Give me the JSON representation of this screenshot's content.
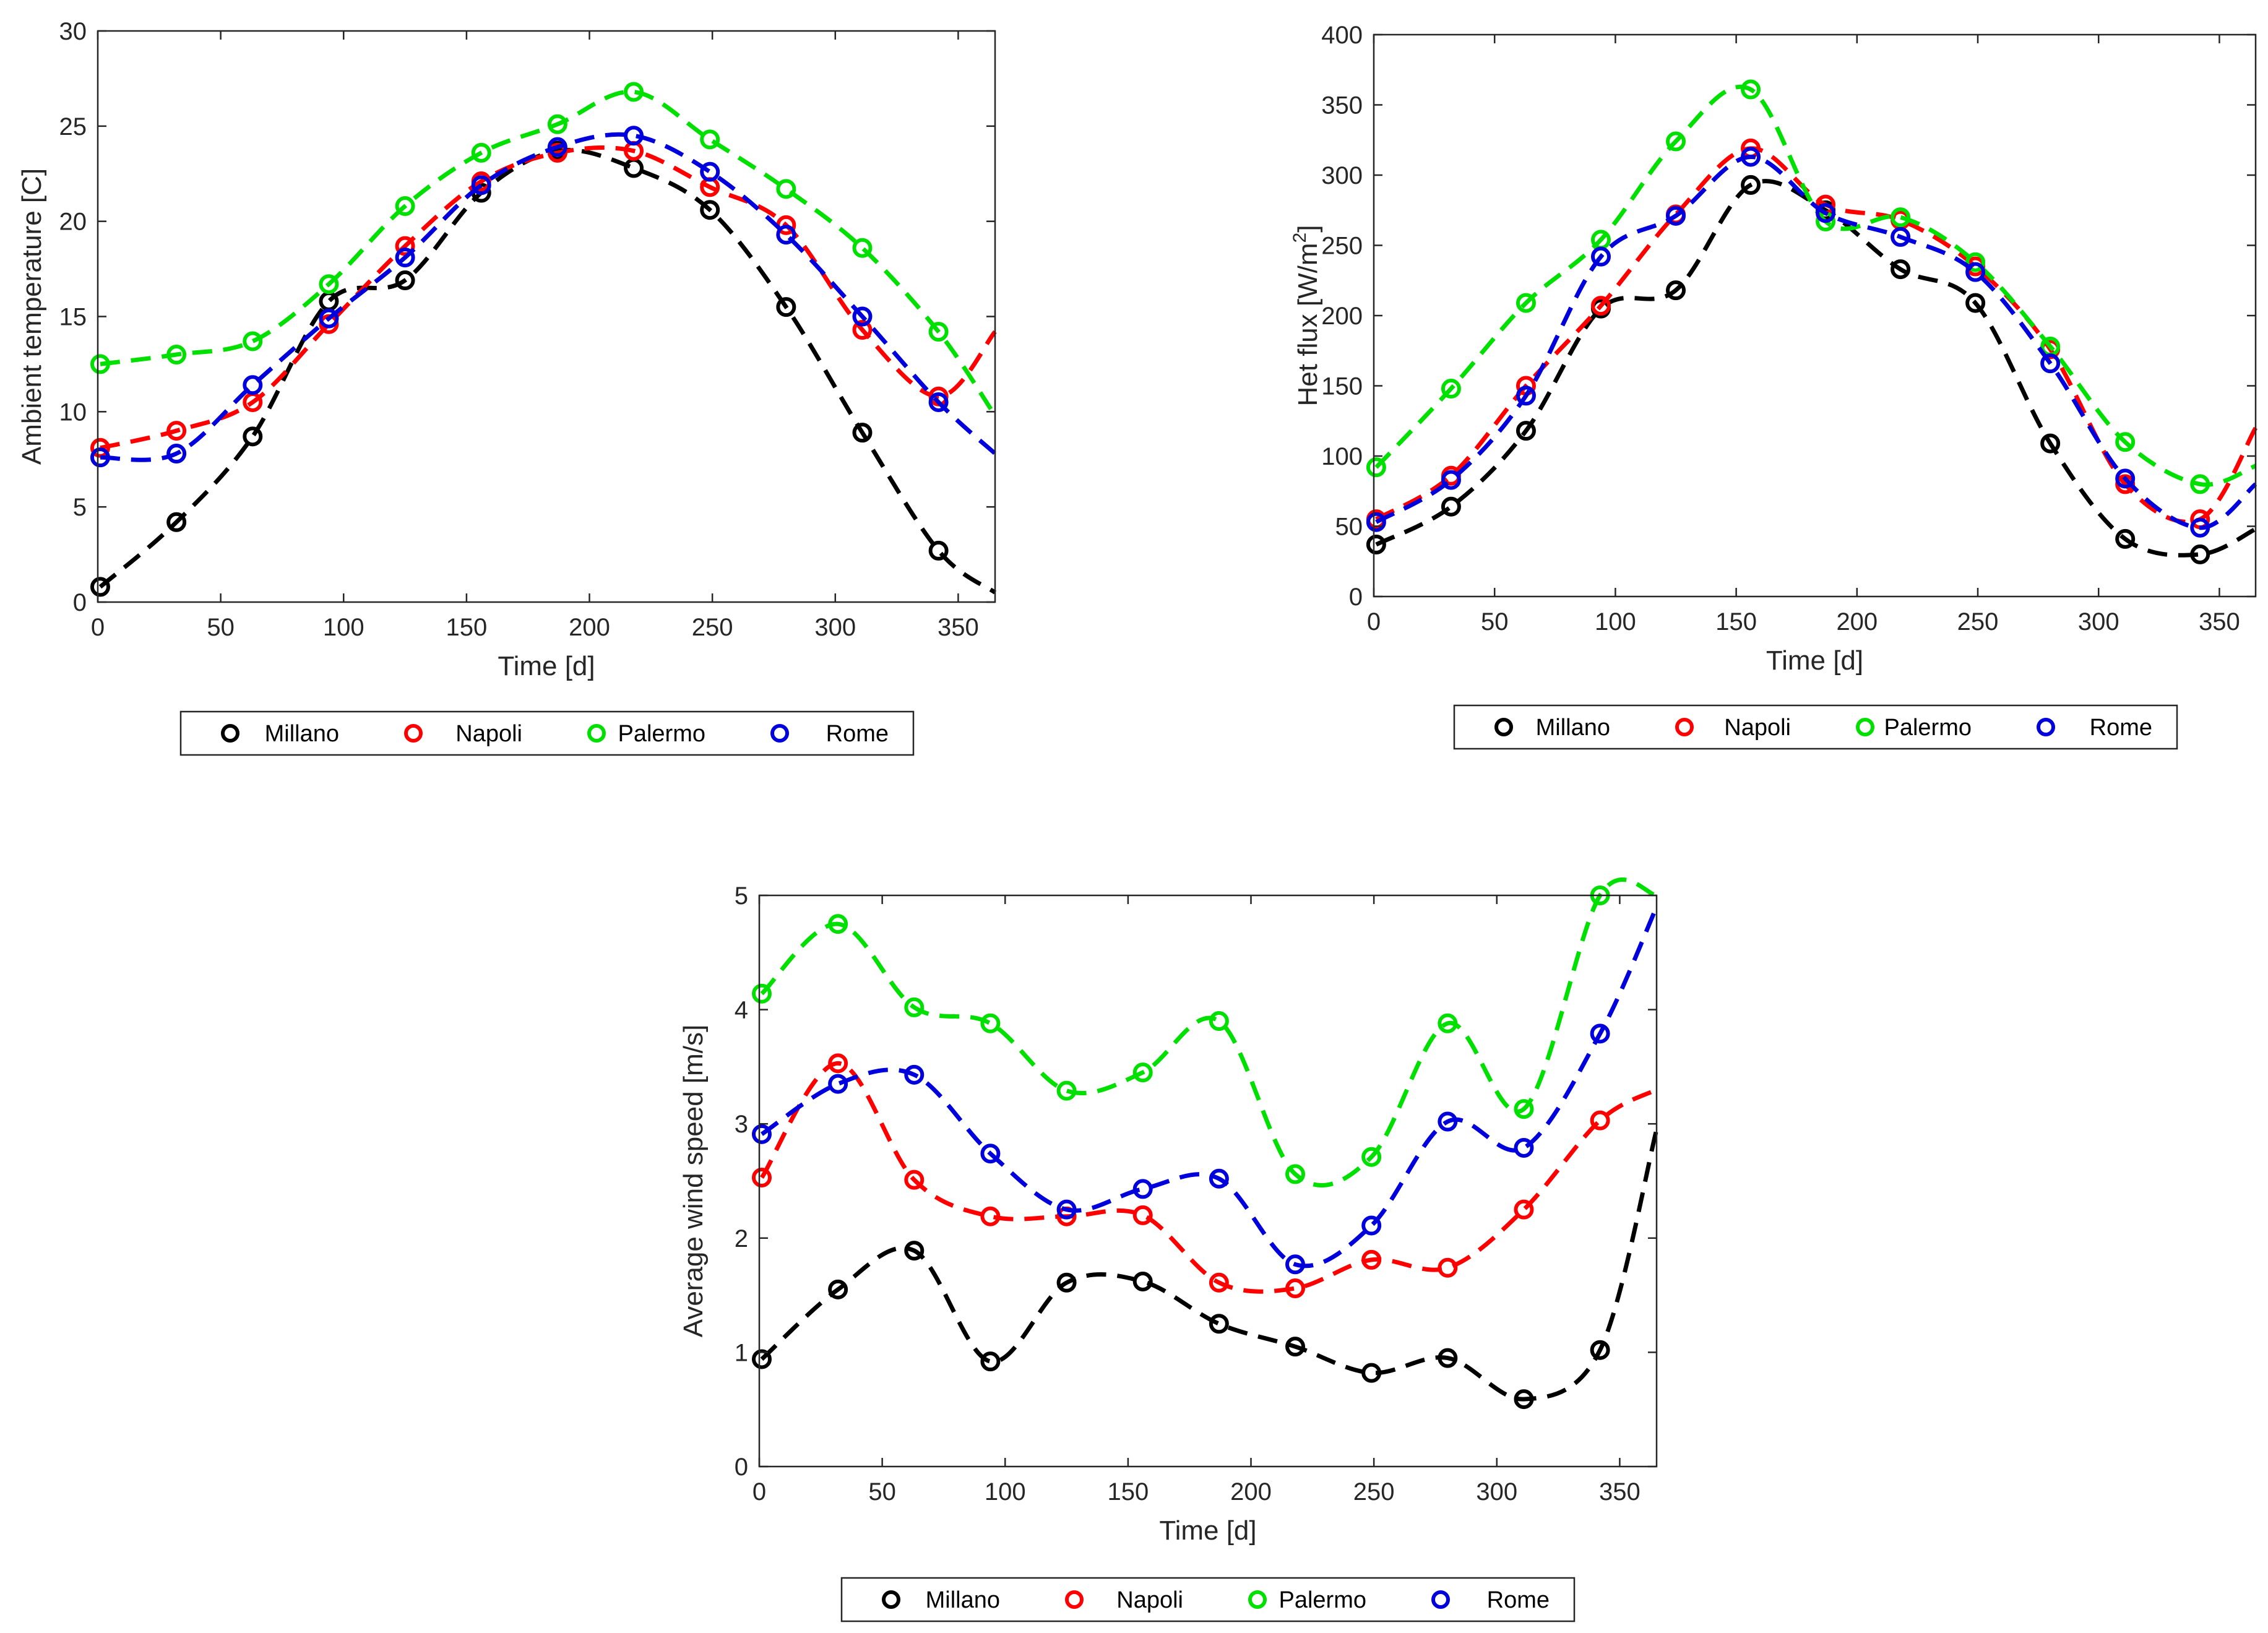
{
  "colors": {
    "Millano": "#000000",
    "Napoli": "#ff0000",
    "Palermo": "#00e000",
    "Rome": "#0000dd"
  },
  "legend": [
    "Millano",
    "Napoli",
    "Palermo",
    "Rome"
  ],
  "chart_data": [
    {
      "type": "line",
      "title": "",
      "xlabel": "Time [d]",
      "ylabel": "Ambient temperature [C]",
      "xlim": [
        0,
        365
      ],
      "ylim": [
        0,
        30
      ],
      "xticks": [
        0,
        50,
        100,
        150,
        200,
        250,
        300,
        350
      ],
      "yticks": [
        0,
        5,
        10,
        15,
        20,
        25,
        30
      ],
      "x": [
        1,
        32,
        63,
        94,
        125,
        156,
        187,
        218,
        249,
        280,
        311,
        342
      ],
      "series": [
        {
          "name": "Millano",
          "values": [
            0.8,
            4.2,
            8.7,
            15.8,
            16.9,
            21.5,
            23.7,
            22.8,
            20.6,
            15.5,
            8.9,
            2.7
          ],
          "tail": 0.5
        },
        {
          "name": "Napoli",
          "values": [
            8.1,
            9.0,
            10.5,
            14.6,
            18.7,
            22.1,
            23.6,
            23.7,
            21.8,
            19.8,
            14.3,
            10.8
          ],
          "tail": 14.2
        },
        {
          "name": "Palermo",
          "values": [
            12.5,
            13.0,
            13.7,
            16.7,
            20.8,
            23.6,
            25.1,
            26.8,
            24.3,
            21.7,
            18.6,
            14.2
          ],
          "tail": 9.8
        },
        {
          "name": "Rome",
          "values": [
            7.6,
            7.8,
            11.4,
            14.9,
            18.1,
            21.9,
            23.9,
            24.5,
            22.6,
            19.3,
            15.0,
            10.5
          ],
          "tail": 7.8
        }
      ]
    },
    {
      "type": "line",
      "title": "",
      "xlabel": "Time [d]",
      "ylabel": "Het flux [W/m2]",
      "ylabel_base": "Het flux [W/m",
      "ylabel_sup": "2",
      "ylabel_end": "]",
      "xlim": [
        0,
        365
      ],
      "ylim": [
        0,
        400
      ],
      "xticks": [
        0,
        50,
        100,
        150,
        200,
        250,
        300,
        350
      ],
      "yticks": [
        0,
        50,
        100,
        150,
        200,
        250,
        300,
        350,
        400
      ],
      "x": [
        1,
        32,
        63,
        94,
        125,
        156,
        187,
        218,
        249,
        280,
        311,
        342
      ],
      "series": [
        {
          "name": "Millano",
          "values": [
            37,
            64,
            118,
            205,
            218,
            293,
            275,
            233,
            209,
            109,
            41,
            30
          ],
          "tail": 48
        },
        {
          "name": "Napoli",
          "values": [
            55,
            86,
            150,
            207,
            272,
            319,
            279,
            268,
            235,
            176,
            80,
            55
          ],
          "tail": 120
        },
        {
          "name": "Palermo",
          "values": [
            92,
            148,
            209,
            254,
            324,
            361,
            267,
            270,
            238,
            178,
            110,
            80
          ],
          "tail": 93
        },
        {
          "name": "Rome",
          "values": [
            53,
            83,
            143,
            242,
            271,
            313,
            273,
            256,
            231,
            166,
            84,
            49
          ],
          "tail": 80
        }
      ]
    },
    {
      "type": "line",
      "title": "",
      "xlabel": "Time [d]",
      "ylabel": "Average wind speed [m/s]",
      "xlim": [
        0,
        365
      ],
      "ylim": [
        0,
        5
      ],
      "xticks": [
        0,
        50,
        100,
        150,
        200,
        250,
        300,
        350
      ],
      "yticks": [
        0,
        1,
        2,
        3,
        4,
        5
      ],
      "x": [
        1,
        32,
        63,
        94,
        125,
        156,
        187,
        218,
        249,
        280,
        311,
        342
      ],
      "series": [
        {
          "name": "Millano",
          "values": [
            0.94,
            1.55,
            1.89,
            0.92,
            1.61,
            1.62,
            1.25,
            1.05,
            0.82,
            0.95,
            0.59,
            1.02
          ],
          "tail": 2.95
        },
        {
          "name": "Napoli",
          "values": [
            2.53,
            3.53,
            2.51,
            2.19,
            2.19,
            2.2,
            1.61,
            1.56,
            1.81,
            1.74,
            2.25,
            3.03
          ],
          "tail": 3.3
        },
        {
          "name": "Palermo",
          "values": [
            4.14,
            4.75,
            4.02,
            3.88,
            3.29,
            3.45,
            3.9,
            2.56,
            2.71,
            3.88,
            3.13,
            5.0
          ],
          "tail": 5.0
        },
        {
          "name": "Rome",
          "values": [
            2.91,
            3.35,
            3.43,
            2.74,
            2.25,
            2.43,
            2.52,
            1.77,
            2.11,
            3.02,
            2.79,
            3.79
          ],
          "tail": 4.9
        }
      ]
    }
  ]
}
